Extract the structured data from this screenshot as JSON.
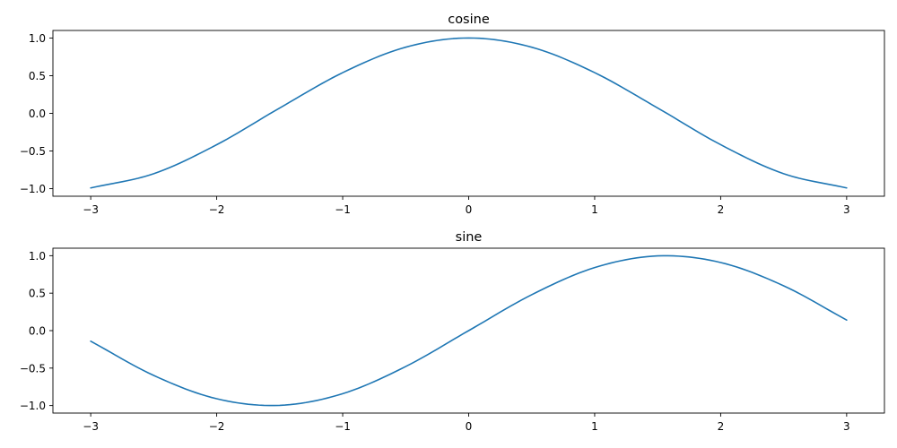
{
  "chart_data": [
    {
      "type": "line",
      "title": "cosine",
      "xlabel": "",
      "ylabel": "",
      "xlim": [
        -3.3,
        3.3
      ],
      "ylim": [
        -1.1,
        1.1
      ],
      "xticks": [
        -3,
        -2,
        -1,
        0,
        1,
        2,
        3
      ],
      "xtick_labels": [
        "−3",
        "−2",
        "−1",
        "0",
        "1",
        "2",
        "3"
      ],
      "yticks": [
        -1.0,
        -0.5,
        0.0,
        0.5,
        1.0
      ],
      "ytick_labels": [
        "−1.0",
        "−0.5",
        "0.0",
        "0.5",
        "1.0"
      ],
      "grid": false,
      "series": [
        {
          "color": "#1f77b4",
          "x": [
            -3.0,
            -2.5,
            -2.0,
            -1.5,
            -1.0,
            -0.5,
            0.0,
            0.5,
            1.0,
            1.5,
            2.0,
            2.5,
            3.0
          ],
          "y": [
            -0.99,
            -0.801,
            -0.416,
            0.071,
            0.54,
            0.878,
            1.0,
            0.878,
            0.54,
            0.071,
            -0.416,
            -0.801,
            -0.99
          ]
        }
      ]
    },
    {
      "type": "line",
      "title": "sine",
      "xlabel": "",
      "ylabel": "",
      "xlim": [
        -3.3,
        3.3
      ],
      "ylim": [
        -1.1,
        1.1
      ],
      "xticks": [
        -3,
        -2,
        -1,
        0,
        1,
        2,
        3
      ],
      "xtick_labels": [
        "−3",
        "−2",
        "−1",
        "0",
        "1",
        "2",
        "3"
      ],
      "yticks": [
        -1.0,
        -0.5,
        0.0,
        0.5,
        1.0
      ],
      "ytick_labels": [
        "−1.0",
        "−0.5",
        "0.0",
        "0.5",
        "1.0"
      ],
      "grid": false,
      "series": [
        {
          "color": "#1f77b4",
          "x": [
            -3.0,
            -2.5,
            -2.0,
            -1.5,
            -1.0,
            -0.5,
            0.0,
            0.5,
            1.0,
            1.5,
            2.0,
            2.5,
            3.0
          ],
          "y": [
            -0.141,
            -0.598,
            -0.909,
            -0.997,
            -0.841,
            -0.479,
            0.0,
            0.479,
            0.841,
            0.997,
            0.909,
            0.598,
            0.141
          ]
        }
      ]
    }
  ]
}
